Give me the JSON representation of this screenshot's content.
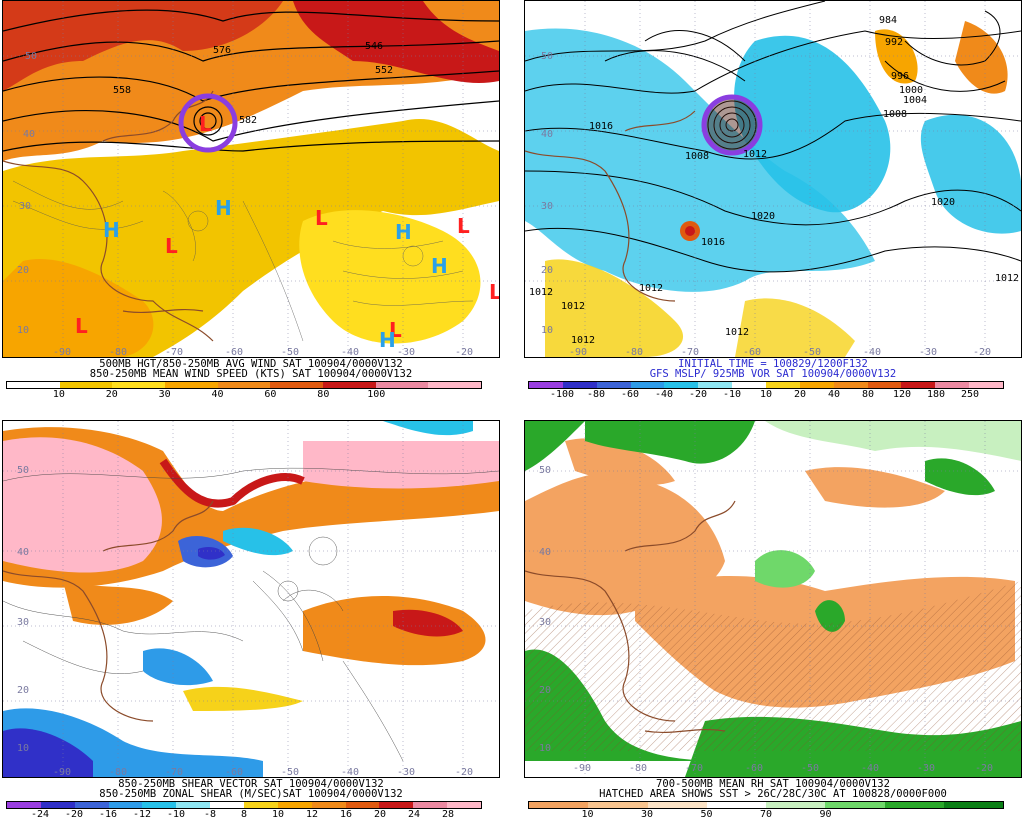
{
  "panels": {
    "p1": {
      "line1": "500MB HGT/850-250MB AVG WIND SAT 100904/0000V132",
      "line2": "850-250MB MEAN WIND SPEED (KTS) SAT 100904/0000V132",
      "ticks": [
        "10",
        "20",
        "30",
        "40",
        "60",
        "80",
        "100"
      ],
      "colors": [
        "#ffffff",
        "#f2c400",
        "#ffde1f",
        "#f7a500",
        "#f08a1a",
        "#e05a10",
        "#c81818",
        "#ec8aa2",
        "#ffb8c8"
      ],
      "contours": [
        "576",
        "546",
        "552",
        "558",
        "582",
        "570"
      ],
      "lat": [
        "50",
        "40",
        "30",
        "20",
        "10"
      ],
      "lon": [
        "-90",
        "-80",
        "-70",
        "-60",
        "-50",
        "-40",
        "-30",
        "-20"
      ]
    },
    "p2": {
      "line1": "INITIAL TIME = 100829/1200F132",
      "line2": "GFS MSLP/ 925MB VOR SAT 100904/0000V132",
      "ticks": [
        "-100",
        "-80",
        "-60",
        "-40",
        "-20",
        "-10",
        "10",
        "20",
        "40",
        "80",
        "120",
        "180",
        "250"
      ],
      "colors": [
        "#9a3ee0",
        "#3030c8",
        "#3c64d8",
        "#2e9be8",
        "#27c1e8",
        "#8ee6f2",
        "#ffffff",
        "#f6d21a",
        "#f7a500",
        "#f08a1a",
        "#e05a10",
        "#c81818",
        "#ec8aa2",
        "#ffb8c8"
      ],
      "contours": [
        "984",
        "992",
        "996",
        "1000",
        "1004",
        "1008",
        "1016",
        "1008",
        "1012",
        "1020",
        "1020",
        "1016",
        "1012",
        "1012",
        "1012",
        "1012",
        "1012",
        "1012"
      ],
      "lat": [
        "50",
        "40",
        "30",
        "20",
        "10"
      ],
      "lon": [
        "-90",
        "-80",
        "-70",
        "-60",
        "-50",
        "-40",
        "-30",
        "-20"
      ]
    },
    "p3": {
      "line1": "850-250MB SHEAR VECTOR SAT 100904/0000V132",
      "line2": "850-250MB ZONAL SHEAR (M/SEC)SAT 100904/0000V132",
      "ticks": [
        "-24",
        "-20",
        "-16",
        "-12",
        "-10",
        "-8",
        "8",
        "10",
        "12",
        "16",
        "20",
        "24",
        "28"
      ],
      "colors": [
        "#9a3ee0",
        "#3030c8",
        "#3c64d8",
        "#2e9be8",
        "#27c1e8",
        "#8ee6f2",
        "#ffffff",
        "#f6d21a",
        "#f7a500",
        "#f08a1a",
        "#e05a10",
        "#c81818",
        "#ec8aa2",
        "#ffb8c8"
      ],
      "lat": [
        "50",
        "40",
        "30",
        "20",
        "10"
      ],
      "lon": [
        "-90",
        "-80",
        "-70",
        "-60",
        "-50",
        "-40",
        "-30",
        "-20"
      ]
    },
    "p4": {
      "line1": "700-500MB MEAN RH SAT 100904/0000V132",
      "line2": "HATCHED AREA SHOWS SST > 26C/28C/30C AT 100828/0000F000",
      "ticks": [
        "10",
        "30",
        "50",
        "70",
        "90"
      ],
      "colors": [
        "#f3a361",
        "#f8c48f",
        "#fce3c6",
        "#ffffff",
        "#c8f0c0",
        "#6fd86a",
        "#2aa82a",
        "#0b7f16"
      ],
      "lat": [
        "50",
        "40",
        "30",
        "20",
        "10"
      ],
      "lon": [
        "-90",
        "-80",
        "-70",
        "-60",
        "-50",
        "-40",
        "-30",
        "-20"
      ]
    }
  },
  "labels": {
    "L": "L",
    "H": "H"
  }
}
